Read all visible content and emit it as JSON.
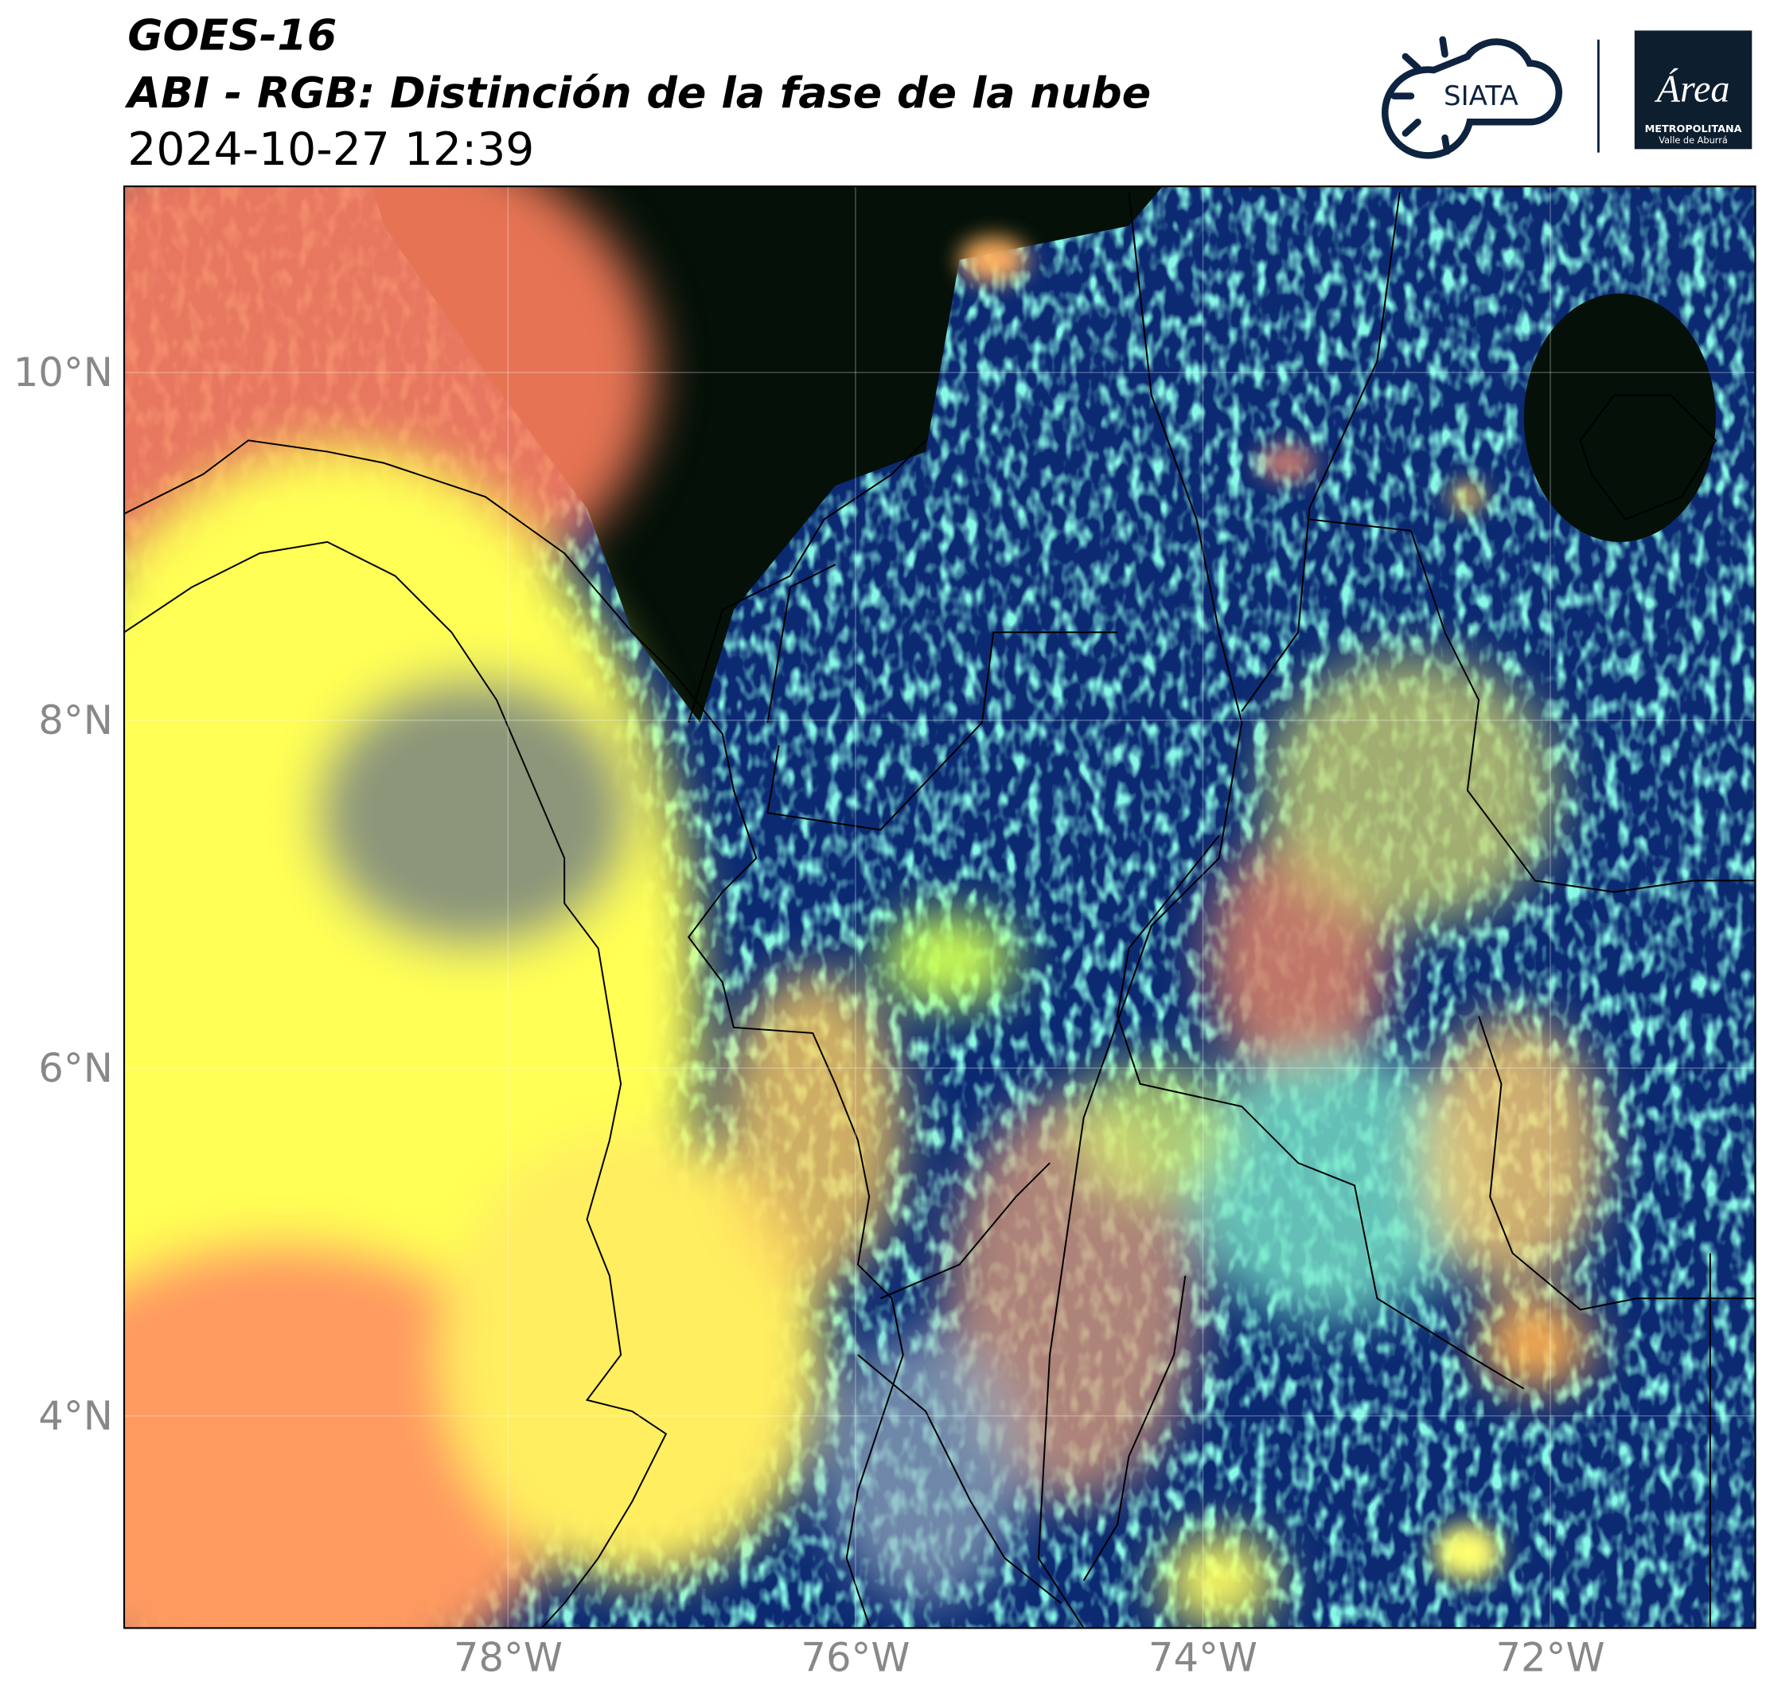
{
  "header": {
    "title": "GOES-16",
    "subtitle": "ABI - RGB: Distinción de la fase de la nube",
    "timestamp": "2024-10-27 12:39"
  },
  "logos": {
    "siata": "SIATA",
    "area": "Área",
    "area_line1": "METROPOLITANA",
    "area_line2": "Valle de Aburrá"
  },
  "map": {
    "lon_range": [
      -80.21,
      -70.82
    ],
    "lat_range": [
      2.78,
      11.07
    ],
    "lon_ticks": [
      {
        "value": -78,
        "label": "78°W"
      },
      {
        "value": -76,
        "label": "76°W"
      },
      {
        "value": -74,
        "label": "74°W"
      },
      {
        "value": -72,
        "label": "72°W"
      }
    ],
    "lat_ticks": [
      {
        "value": 10,
        "label": "10°N"
      },
      {
        "value": 8,
        "label": "8°N"
      },
      {
        "value": 6,
        "label": "6°N"
      },
      {
        "value": 4,
        "label": "4°N"
      }
    ]
  }
}
